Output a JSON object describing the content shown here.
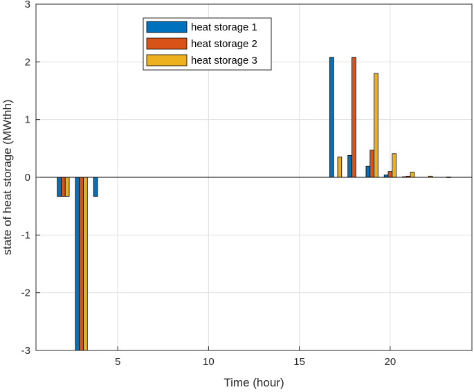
{
  "chart_data": {
    "type": "bar",
    "title": "",
    "xlabel": "Time (hour)",
    "ylabel": "state of heat storage (MWthh)",
    "xlim": [
      0.5,
      24.5
    ],
    "ylim": [
      -3,
      3
    ],
    "xticks": [
      5,
      10,
      15,
      20
    ],
    "yticks": [
      -3,
      -2,
      -1,
      0,
      1,
      2,
      3
    ],
    "grid": true,
    "legend_position": "top-center",
    "x": [
      1,
      2,
      3,
      4,
      5,
      6,
      7,
      8,
      9,
      10,
      11,
      12,
      13,
      14,
      15,
      16,
      17,
      18,
      19,
      20,
      21,
      22,
      23,
      24
    ],
    "series": [
      {
        "name": "heat storage 1",
        "color": "#0072BD",
        "values": [
          0,
          -0.33,
          -3.3,
          -0.33,
          0,
          0,
          0,
          0,
          0,
          0,
          0,
          0,
          0,
          0,
          0,
          0,
          2.08,
          0.38,
          0.19,
          0.04,
          0.01,
          0,
          0,
          0
        ]
      },
      {
        "name": "heat storage 2",
        "color": "#D95319",
        "values": [
          0,
          -0.33,
          -3.3,
          0,
          0,
          0,
          0,
          0,
          0,
          0,
          0,
          0,
          0,
          0,
          0,
          0,
          0,
          2.08,
          0.47,
          0.1,
          0.02,
          0,
          0,
          0
        ]
      },
      {
        "name": "heat storage 3",
        "color": "#EDB120",
        "values": [
          0,
          -0.33,
          -3.3,
          0,
          0,
          0,
          0,
          0,
          0,
          0,
          0,
          0,
          0,
          0,
          0,
          0,
          0.35,
          0,
          1.8,
          0.41,
          0.09,
          0.02,
          0.005,
          0
        ]
      }
    ]
  }
}
